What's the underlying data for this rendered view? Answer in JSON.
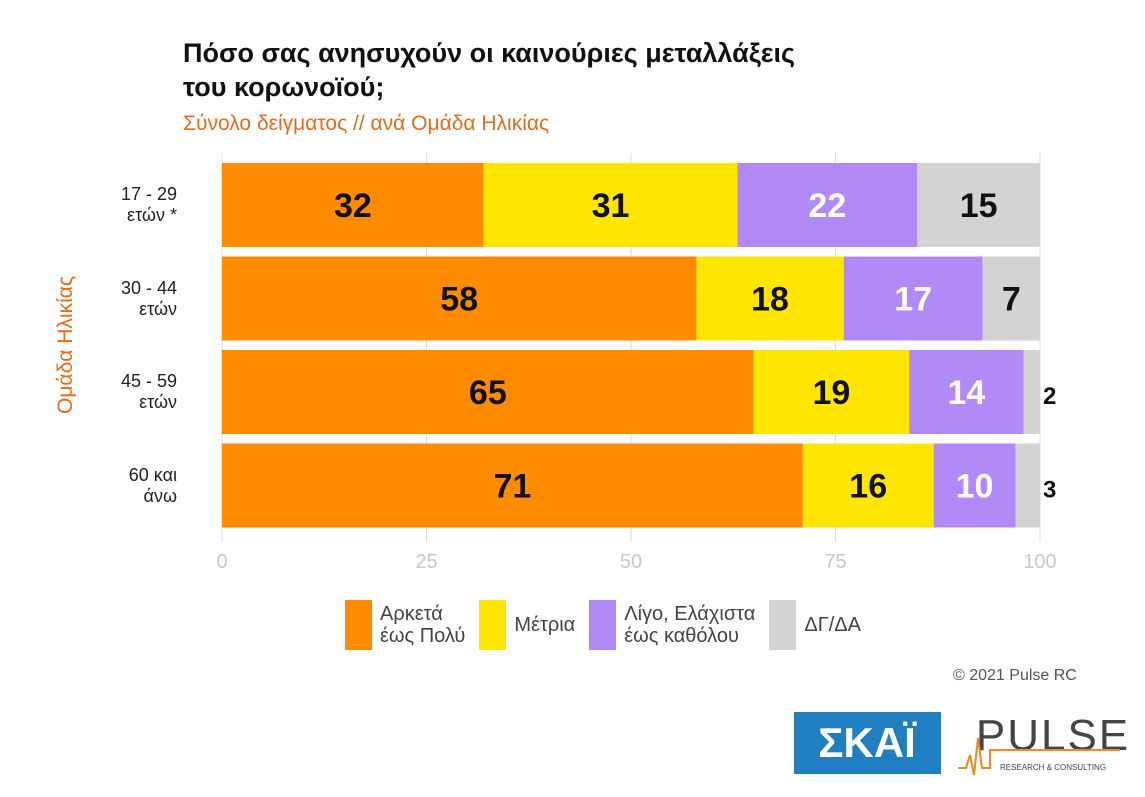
{
  "chart_data": {
    "type": "bar",
    "orientation": "horizontal",
    "stacked": true,
    "title": "Πόσο σας ανησυχούν οι καινούριες μεταλλάξεις\nτου κορωνοϊού;",
    "subtitle": "Σύνολο δείγματος // ανά Ομάδα Ηλικίας",
    "y_label": "Ομάδα Ηλικίας",
    "categories": [
      "17 - 29\nετών *",
      "30 - 44\nετών",
      "45 - 59\nετών",
      "60 και\nάνω"
    ],
    "series": [
      {
        "name": "Αρκετά\nέως Πολύ",
        "color": "#ff8c00",
        "label_color": "#111111",
        "values": [
          32,
          58,
          65,
          71
        ]
      },
      {
        "name": "Μέτρια",
        "color": "#ffe600",
        "label_color": "#111111",
        "values": [
          31,
          18,
          19,
          16
        ]
      },
      {
        "name": "Λίγο, Ελάχιστα\nέως καθόλου",
        "color": "#b18af7",
        "label_color": "#ffffff",
        "values": [
          22,
          17,
          14,
          10
        ]
      },
      {
        "name": "ΔΓ/ΔΑ",
        "color": "#d3d3d3",
        "label_color": "#111111",
        "values": [
          15,
          7,
          2,
          3
        ]
      }
    ],
    "xlim": [
      0,
      100
    ],
    "xticks": [
      0,
      25,
      50,
      75,
      100
    ],
    "grid": true,
    "watermark": "PULSE",
    "copyright": "© 2021 Pulse RC",
    "logos": [
      "ΣΚΑΪ",
      "PULSE",
      "RESEARCH & CONSULTING"
    ]
  }
}
